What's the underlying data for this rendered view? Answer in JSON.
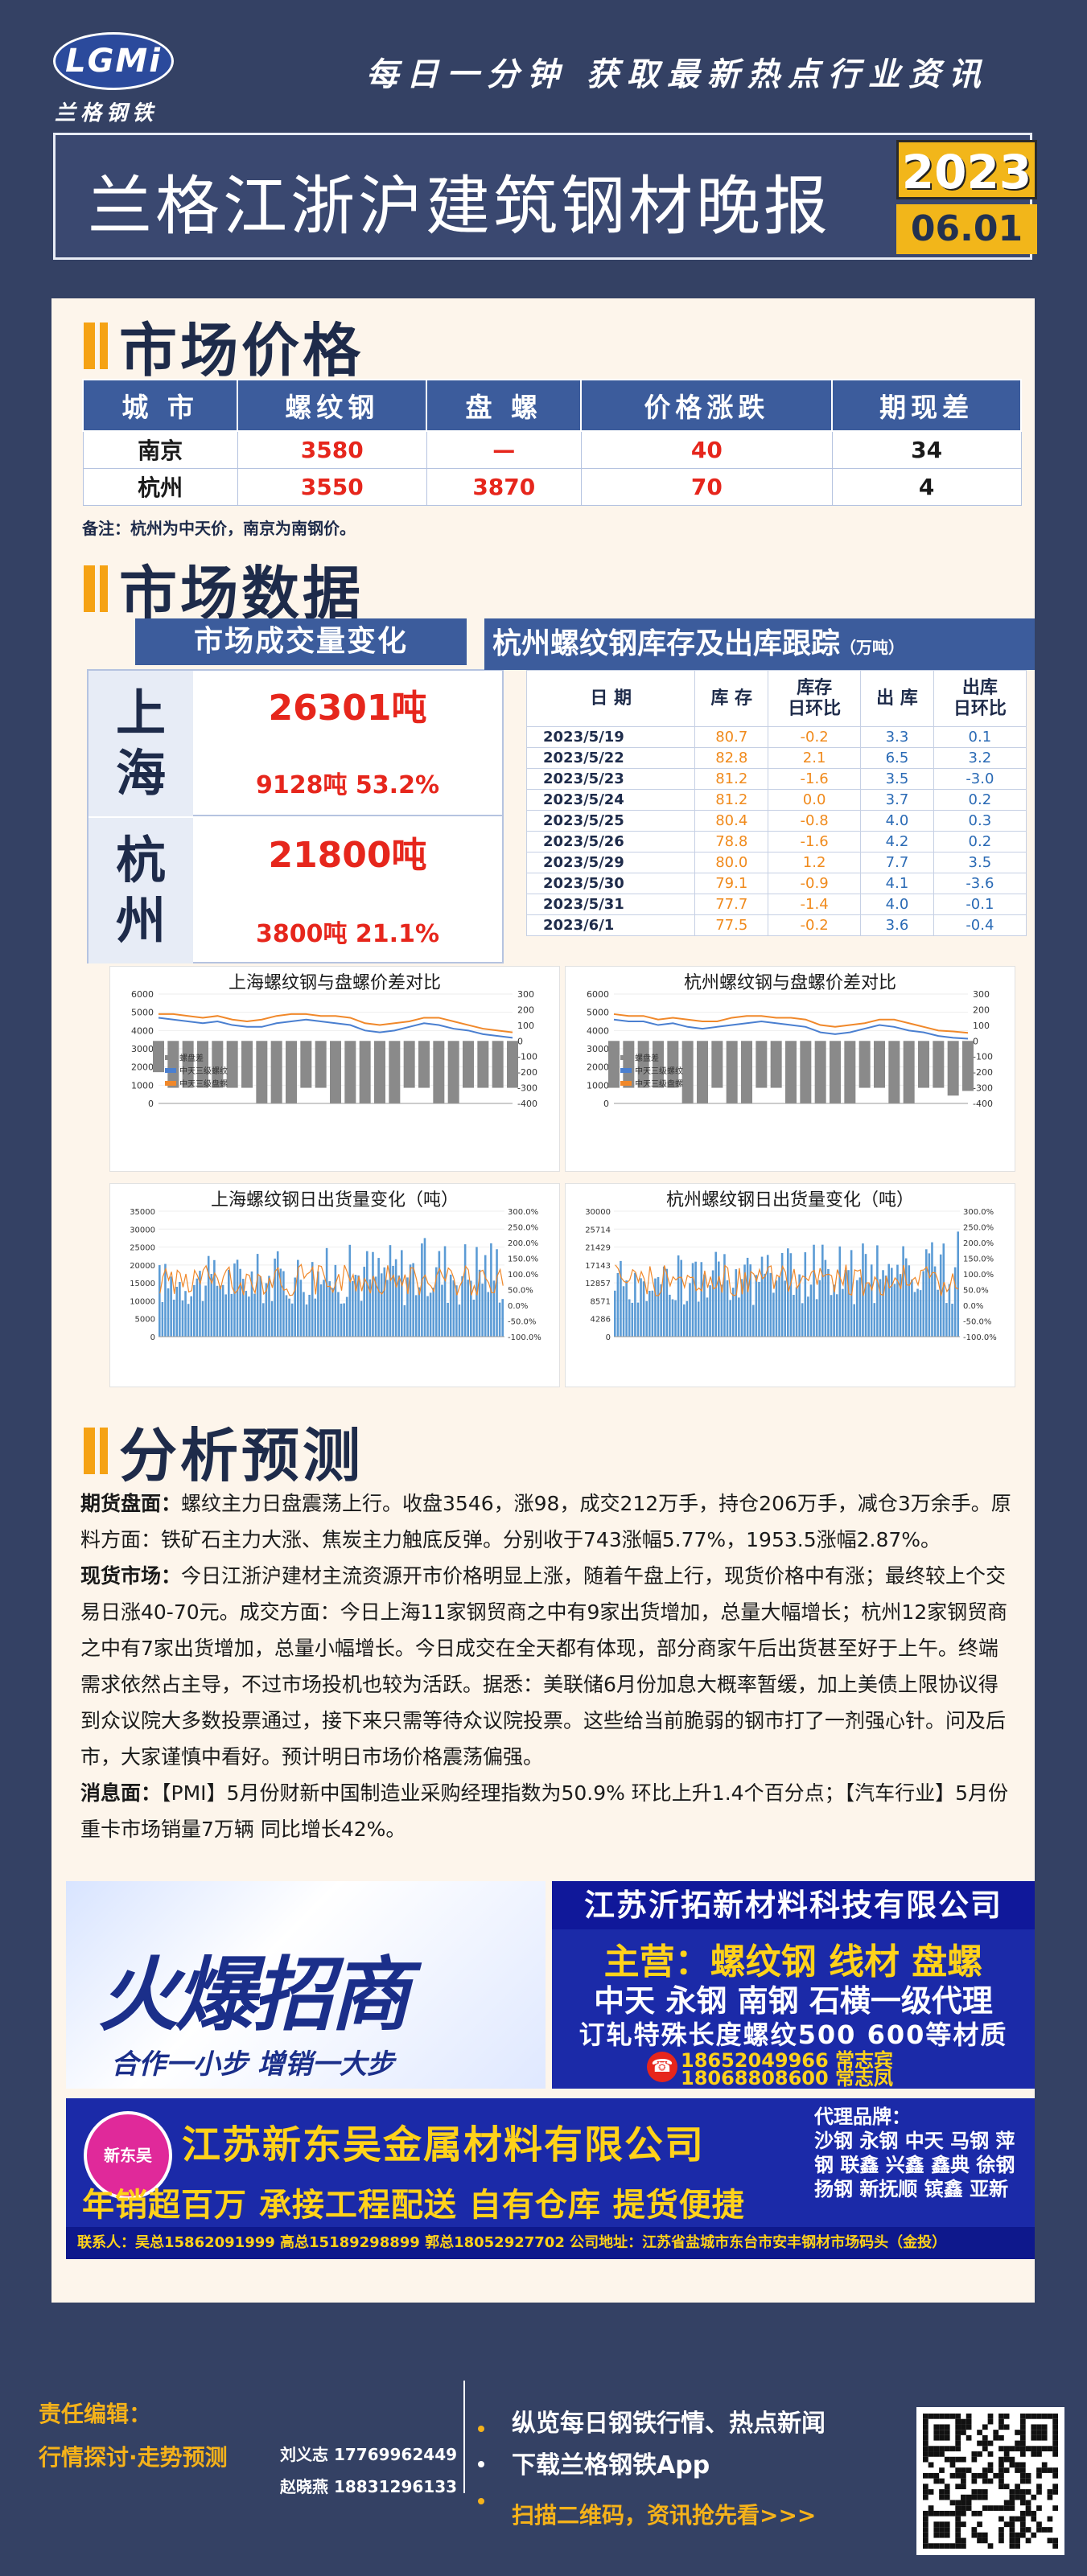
{
  "header": {
    "logo_mark": "LGMi",
    "logo_text": "兰格钢铁",
    "slogan": "每日一分钟  获取最新热点行业资讯",
    "title": "兰格江浙沪建筑钢材晚报",
    "year": "2023",
    "date": "06.01"
  },
  "price": {
    "section_title": "市场价格",
    "headers": [
      "城 市",
      "螺纹钢",
      "盘 螺",
      "价格涨跌",
      "期现差"
    ],
    "rows": [
      [
        "南京",
        "3580",
        "—",
        "40",
        "34"
      ],
      [
        "杭州",
        "3550",
        "3870",
        "70",
        "4"
      ]
    ],
    "note": "备注：杭州为中天价，南京为南钢价。"
  },
  "market": {
    "section_title": "市场数据",
    "volume_title": "市场成交量变化",
    "volume": [
      {
        "city_1": "上",
        "city_2": "海",
        "total": "26301吨",
        "detail": "9128吨  53.2%"
      },
      {
        "city_1": "杭",
        "city_2": "州",
        "total": "21800吨",
        "detail": "3800吨  21.1%"
      }
    ],
    "inventory_title": "杭州螺纹钢库存及出库跟踪",
    "inventory_unit": "（万吨）",
    "inventory_headers": [
      "日 期",
      "库 存",
      "库存\n日环比",
      "出 库",
      "出库\n日环比"
    ],
    "inventory_rows": [
      [
        "2023/5/19",
        "80.7",
        "-0.2",
        "3.3",
        "0.1"
      ],
      [
        "2023/5/22",
        "82.8",
        "2.1",
        "6.5",
        "3.2"
      ],
      [
        "2023/5/23",
        "81.2",
        "-1.6",
        "3.5",
        "-3.0"
      ],
      [
        "2023/5/24",
        "81.2",
        "0.0",
        "3.7",
        "0.2"
      ],
      [
        "2023/5/25",
        "80.4",
        "-0.8",
        "4.0",
        "0.3"
      ],
      [
        "2023/5/26",
        "78.8",
        "-1.6",
        "4.2",
        "0.2"
      ],
      [
        "2023/5/29",
        "80.0",
        "1.2",
        "7.7",
        "3.5"
      ],
      [
        "2023/5/30",
        "79.1",
        "-0.9",
        "4.1",
        "-3.6"
      ],
      [
        "2023/5/31",
        "77.7",
        "-1.4",
        "4.0",
        "-0.1"
      ],
      [
        "2023/6/1",
        "77.5",
        "-0.2",
        "3.6",
        "-0.4"
      ]
    ]
  },
  "charts": {
    "sh_spread_title": "上海螺纹钢与盘螺价差对比",
    "hz_spread_title": "杭州螺纹钢与盘螺价差对比",
    "sh_out_title": "上海螺纹钢日出货量变化（吨）",
    "hz_out_title": "杭州螺纹钢日出货量变化（吨）",
    "legend": [
      "螺盘差",
      "中天三级螺纹",
      "中天三级盘螺"
    ],
    "colors": {
      "bar": "#8a8a8a",
      "rebar": "#4a7fd0",
      "coil": "#f0882a",
      "out_bar": "#5b9bd5",
      "out_line": "#f0882a"
    }
  },
  "chart_data": [
    {
      "type": "line",
      "title": "上海螺纹钢与盘螺价差对比",
      "ylim": [
        0,
        6000
      ],
      "y2lim": [
        -400,
        300
      ],
      "series": [
        {
          "name": "中天三级螺纹",
          "values": [
            4700,
            4600,
            4500,
            4400,
            4500,
            4300,
            4200,
            4200,
            4400,
            4500,
            4600,
            4500,
            4400,
            4300,
            4000,
            3900,
            4000,
            4200,
            4400,
            4300,
            4100,
            4000,
            3800,
            3700,
            3600
          ]
        },
        {
          "name": "中天三级盘螺",
          "values": [
            4900,
            4900,
            4800,
            4700,
            4800,
            4600,
            4500,
            4600,
            4800,
            4900,
            4900,
            4800,
            4800,
            4700,
            4400,
            4300,
            4400,
            4500,
            4700,
            4700,
            4500,
            4300,
            4100,
            4000,
            3900
          ]
        }
      ]
    },
    {
      "type": "line",
      "title": "杭州螺纹钢与盘螺价差对比",
      "ylim": [
        0,
        6000
      ],
      "y2lim": [
        -400,
        300
      ],
      "series": [
        {
          "name": "中天三级螺纹",
          "values": [
            4600,
            4500,
            4500,
            4300,
            4400,
            4200,
            4100,
            4200,
            4300,
            4400,
            4500,
            4400,
            4300,
            4200,
            3900,
            3800,
            3900,
            4100,
            4300,
            4200,
            4000,
            3900,
            3700,
            3600,
            3550
          ]
        },
        {
          "name": "中天三级盘螺",
          "values": [
            4900,
            4800,
            4800,
            4600,
            4700,
            4600,
            4500,
            4500,
            4700,
            4800,
            4800,
            4700,
            4700,
            4600,
            4300,
            4200,
            4300,
            4400,
            4600,
            4600,
            4400,
            4200,
            4000,
            3950,
            3870
          ]
        }
      ]
    },
    {
      "type": "bar",
      "title": "上海螺纹钢日出货量变化（吨）",
      "ylim": [
        0,
        35000
      ],
      "y2lim": [
        -100,
        300
      ]
    },
    {
      "type": "bar",
      "title": "杭州螺纹钢日出货量变化（吨）",
      "ylim": [
        0,
        30000
      ],
      "y2lim": [
        -100,
        300
      ]
    }
  ],
  "analysis": {
    "section_title": "分析预测",
    "p1_label": "期货盘面：",
    "p1": "螺纹主力日盘震荡上行。收盘3546，涨98，成交212万手，持仓206万手，减仓3万余手。原料方面：铁矿石主力大涨、焦炭主力触底反弹。分别收于743涨幅5.77%，1953.5涨幅2.87%。",
    "p2_label": "现货市场：",
    "p2": "今日江浙沪建材主流资源开市价格明显上涨，随着午盘上行，现货价格中有涨；最终较上个交易日涨40-70元。成交方面：今日上海11家钢贸商之中有9家出货增加，总量大幅增长；杭州12家钢贸商之中有7家出货增加，总量小幅增长。今日成交在全天都有体现，部分商家午后出货甚至好于上午。终端需求依然占主导，不过市场投机也较为活跃。据悉：美联储6月份加息大概率暂缓，加上美债上限协议得到众议院大多数投票通过，接下来只需等待众议院投票。这些给当前脆弱的钢市打了一剂强心针。问及后市，大家谨慎中看好。预计明日市场价格震荡偏强。",
    "p3_label": "消息面：",
    "p3": "【PMI】5月份财新中国制造业采购经理指数为50.9% 环比上升1.4个百分点；【汽车行业】5月份重卡市场销量7万辆 同比增长42%。"
  },
  "ads": {
    "ad1_big": "火爆招商",
    "ad1_sub": "合作一小步  增销一大步",
    "ad2_name": "江苏沂拓新材料科技有限公司",
    "ad2_main": "主营：螺纹钢 线材 盘螺",
    "ad2_brands": "中天 永钢 南钢 石横一级代理",
    "ad2_special": "订轧特殊长度螺纹500 600等材质",
    "ad2_phone1": "18652049966 常志宾",
    "ad2_phone2": "18068808600 常志凤",
    "ad3_logo": "新东吴",
    "ad3_name": "江苏新东吴金属材料有限公司",
    "ad3_slogan": "年销超百万 承接工程配送 自有仓库 提货便捷",
    "ad3_brand_label": "代理品牌：",
    "ad3_brands": "沙钢 永钢 中天 马钢 萍钢 联鑫 兴鑫 鑫典 徐钢 扬钢 新抚顺 镔鑫 亚新",
    "ad3_contact": "联系人：吴总15862091999  高总15189298899  郭总18052927702  公司地址：江苏省盐城市东台市安丰钢材市场码头（金投）"
  },
  "footer": {
    "editor_label": "责任编辑：",
    "editor_desc": "行情探讨·走势预测",
    "editor_1": "刘义志 17769962449",
    "editor_2": "赵晓燕 18831296133",
    "app_1": "纵览每日钢铁行情、热点新闻",
    "app_2": "下载兰格钢铁App",
    "app_3": "扫描二维码，资讯抢先看>>>"
  }
}
